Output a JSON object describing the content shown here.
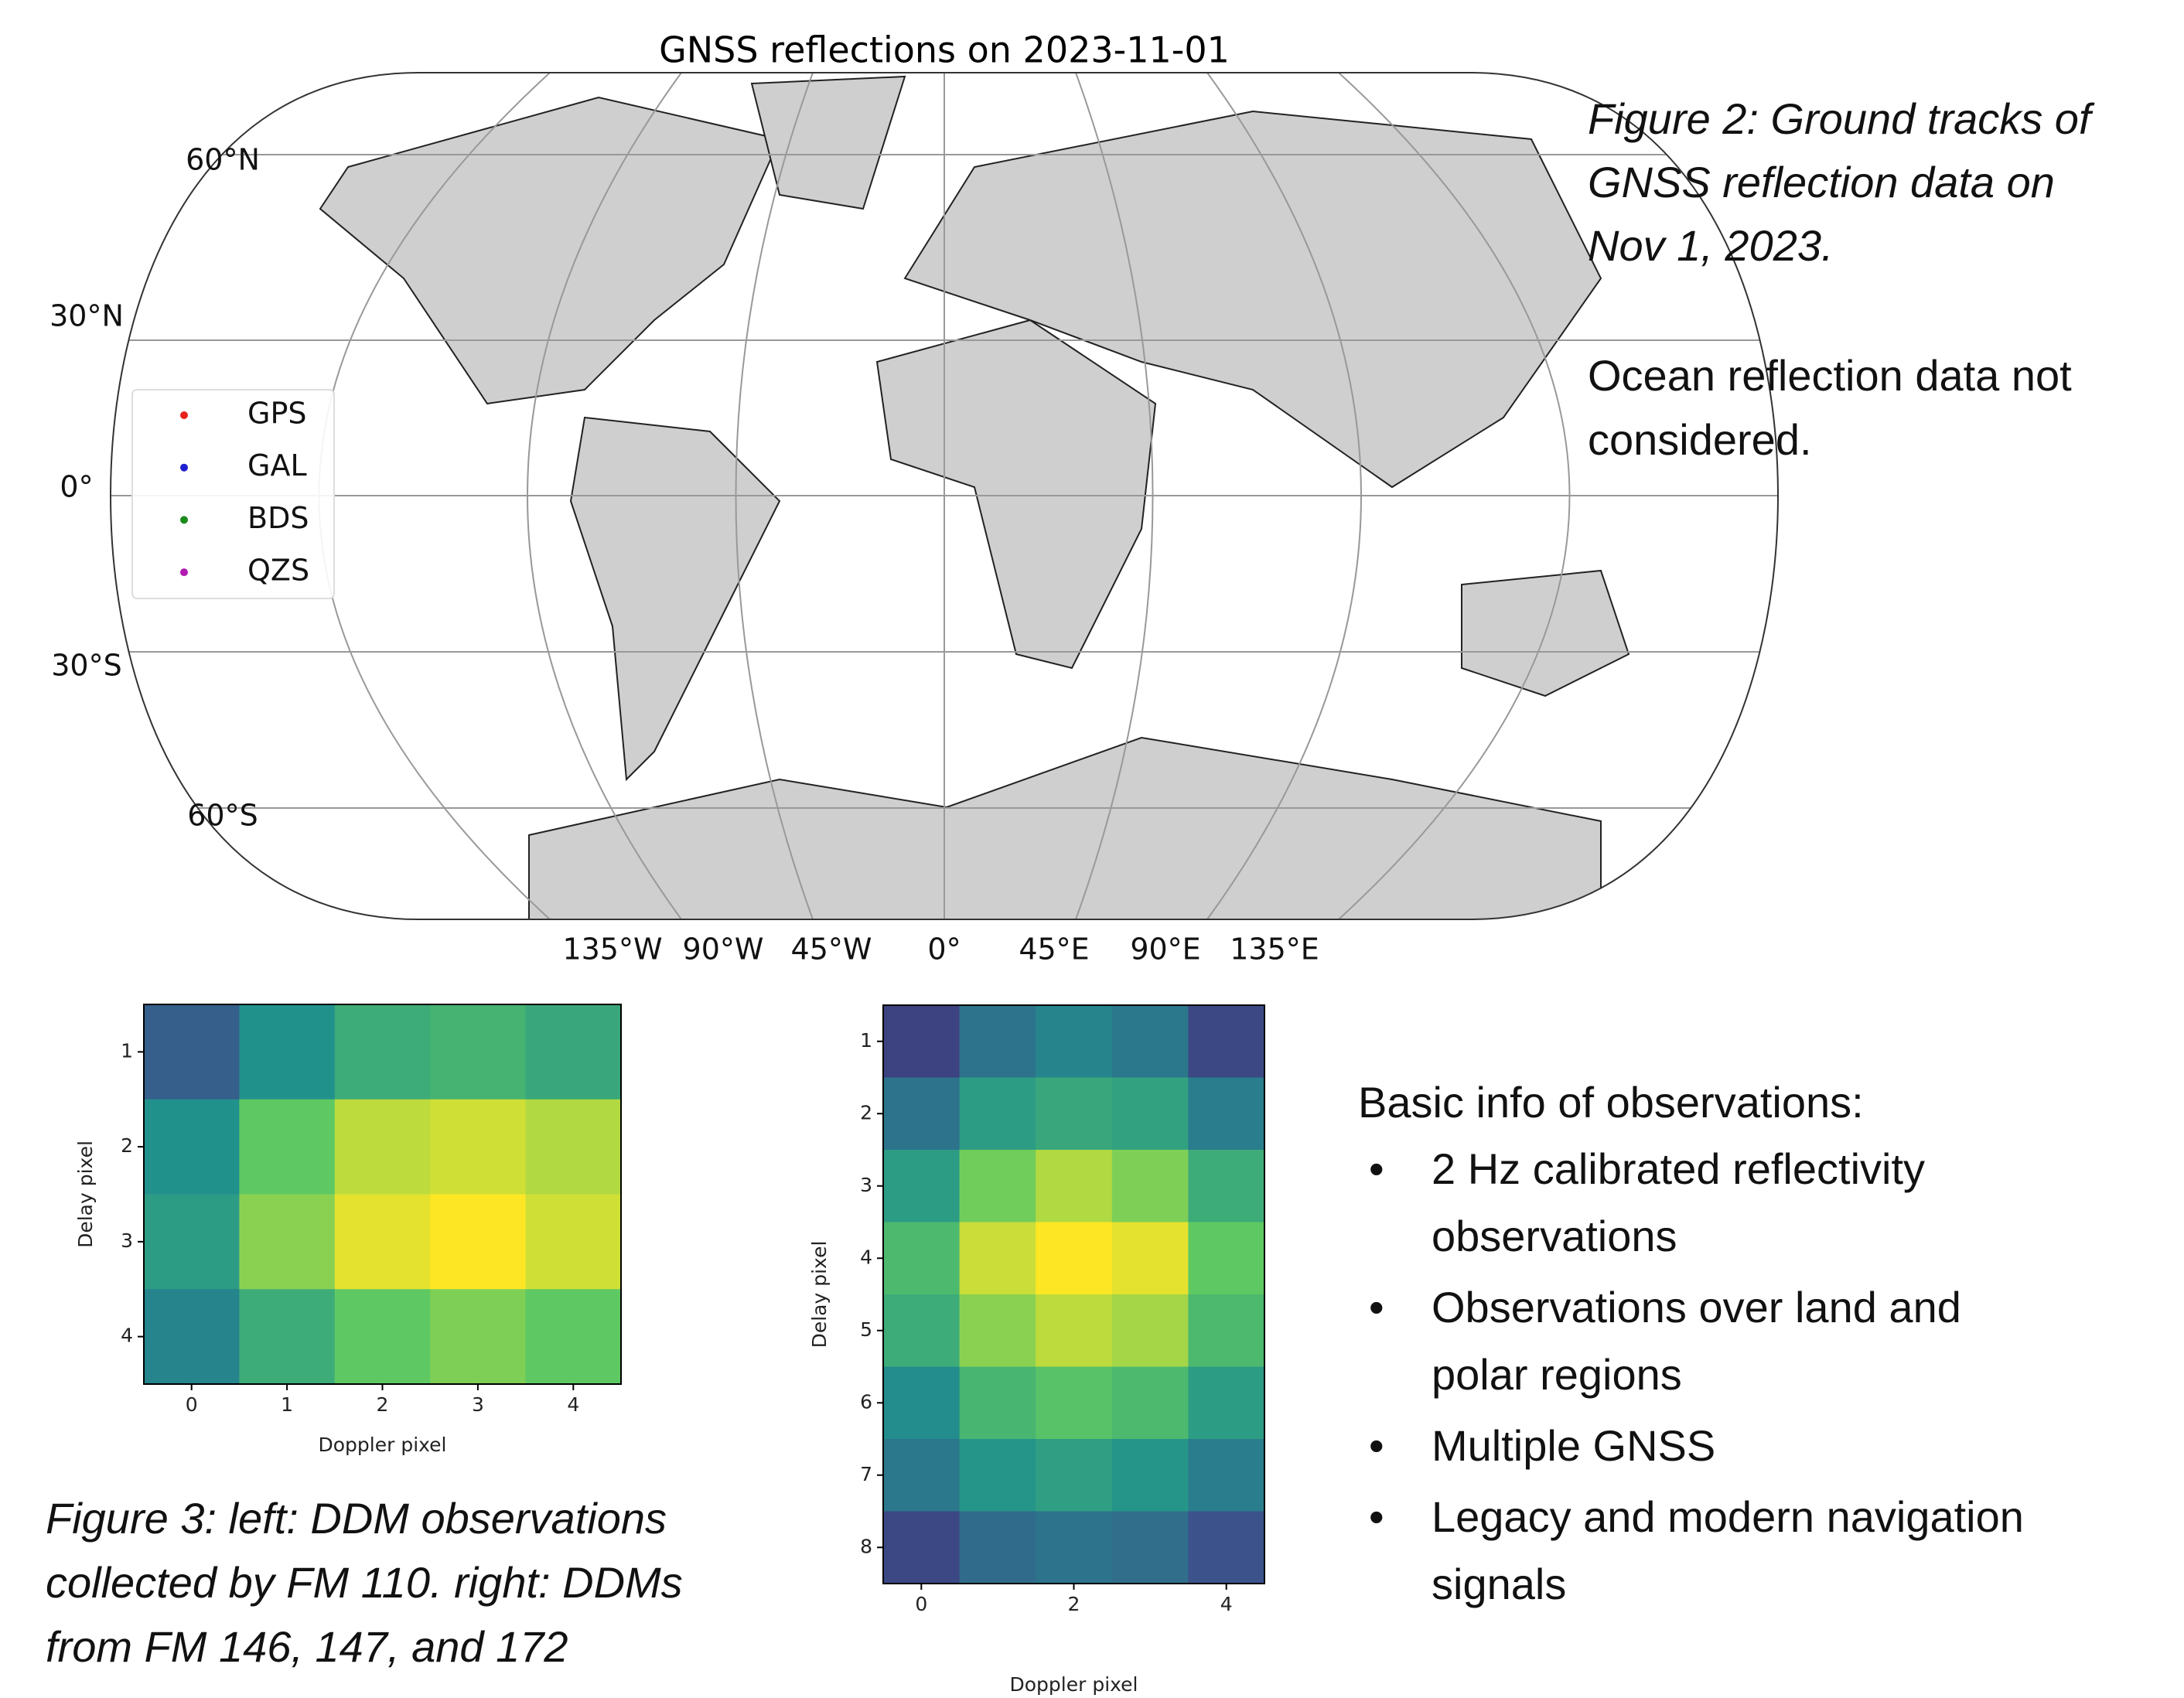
{
  "figure2": {
    "title": "GNSS reflections on 2023-11-01",
    "lat_labels": [
      "60°N",
      "30°N",
      "0°",
      "30°S",
      "60°S"
    ],
    "lon_labels": [
      "135°W",
      "90°W",
      "45°W",
      "0°",
      "45°E",
      "90°E",
      "135°E"
    ],
    "legend": [
      {
        "name": "GPS",
        "color": "#e8201c"
      },
      {
        "name": "GAL",
        "color": "#1f1fd0"
      },
      {
        "name": "BDS",
        "color": "#1a8a1a"
      },
      {
        "name": "QZS",
        "color": "#b01ab0"
      }
    ],
    "caption": [
      "Figure 2: Ground tracks of",
      "GNSS reflection data on",
      "Nov 1, 2023."
    ],
    "note": [
      "Ocean reflection data not",
      "considered."
    ]
  },
  "figure3": {
    "left": {
      "xlabel": "Doppler pixel",
      "ylabel": "Delay pixel",
      "xticks": [
        0,
        1,
        2,
        3,
        4
      ],
      "yticks": [
        1,
        2,
        3,
        4
      ],
      "values": [
        [
          0.3,
          0.5,
          0.62,
          0.65,
          0.6
        ],
        [
          0.5,
          0.75,
          0.9,
          0.93,
          0.88
        ],
        [
          0.55,
          0.82,
          0.96,
          1.0,
          0.93
        ],
        [
          0.45,
          0.62,
          0.75,
          0.8,
          0.75
        ]
      ]
    },
    "right": {
      "xlabel": "Doppler pixel",
      "ylabel": "Delay pixel",
      "xticks": [
        0,
        2,
        4
      ],
      "yticks": [
        1,
        2,
        3,
        4,
        5,
        6,
        7,
        8
      ],
      "values": [
        [
          0.2,
          0.38,
          0.45,
          0.4,
          0.22
        ],
        [
          0.38,
          0.55,
          0.6,
          0.57,
          0.42
        ],
        [
          0.55,
          0.78,
          0.88,
          0.8,
          0.62
        ],
        [
          0.68,
          0.92,
          1.0,
          0.96,
          0.75
        ],
        [
          0.62,
          0.82,
          0.9,
          0.86,
          0.68
        ],
        [
          0.48,
          0.66,
          0.72,
          0.68,
          0.55
        ],
        [
          0.4,
          0.52,
          0.56,
          0.52,
          0.42
        ],
        [
          0.22,
          0.35,
          0.38,
          0.36,
          0.25
        ]
      ]
    },
    "caption": [
      "Figure 3: left: DDM observations",
      "collected by FM 110. right: DDMs",
      "from FM 146, 147, and 172"
    ]
  },
  "info": {
    "heading": "Basic info of observations:",
    "bullets": [
      [
        "2 Hz calibrated reflectivity",
        "observations"
      ],
      [
        "Observations over land and",
        "polar regions"
      ],
      [
        "Multiple GNSS"
      ],
      [
        "Legacy and modern navigation",
        "signals"
      ]
    ]
  }
}
